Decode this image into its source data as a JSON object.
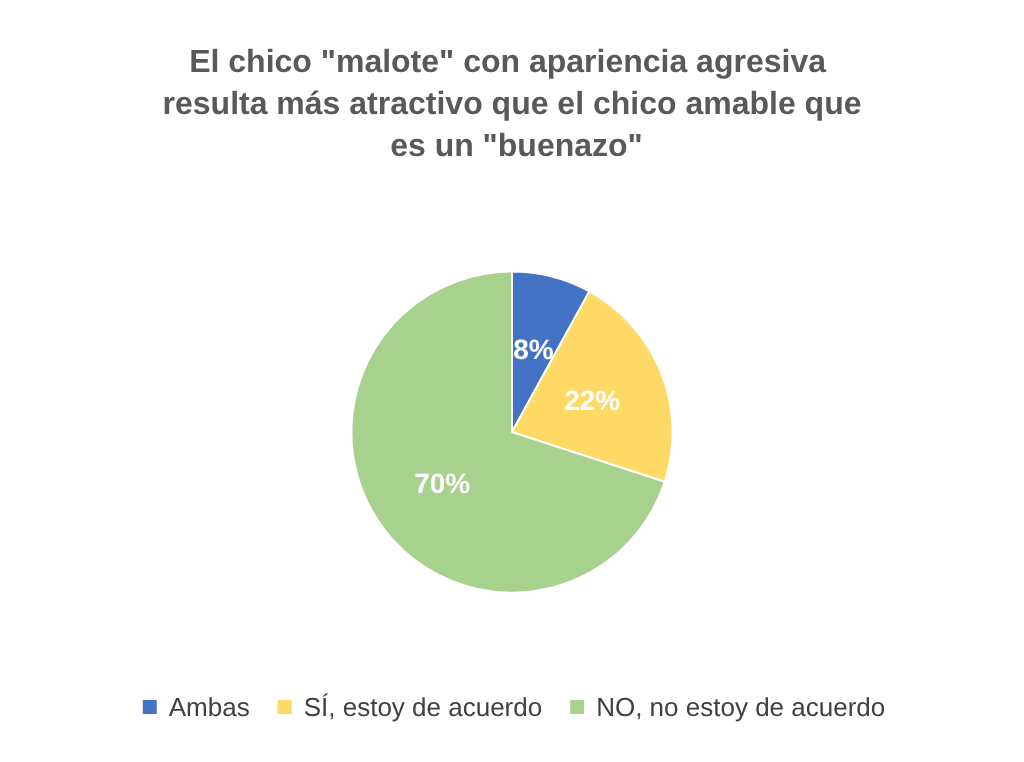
{
  "chart_data": {
    "type": "pie",
    "title": "El chico \"malote\" con apariencia agresiva resulta más atractivo que el chico amable que es un \"buenazo\"",
    "categories": [
      "Ambas",
      "SÍ, estoy de acuerdo",
      "NO, no estoy de acuerdo"
    ],
    "values": [
      8,
      22,
      70
    ],
    "colors": [
      "#4472c4",
      "#ffd966",
      "#a9d18e"
    ],
    "value_labels": [
      "8%",
      "22%",
      "70%"
    ],
    "legend": "bottom"
  }
}
